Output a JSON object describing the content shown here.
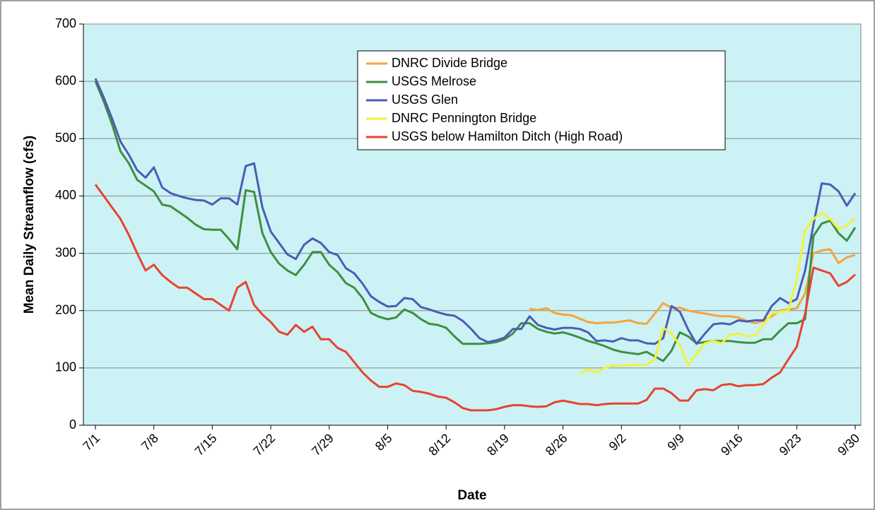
{
  "chart_data": {
    "type": "line",
    "ylabel": "Mean Daily Streamflow (cfs)",
    "xlabel": "Date",
    "categories": [
      "7/1",
      null,
      null,
      null,
      null,
      null,
      null,
      "7/8",
      null,
      null,
      null,
      null,
      null,
      null,
      "7/15",
      null,
      null,
      null,
      null,
      null,
      null,
      "7/22",
      null,
      null,
      null,
      null,
      null,
      null,
      "7/29",
      null,
      null,
      null,
      null,
      null,
      null,
      "8/5",
      null,
      null,
      null,
      null,
      null,
      null,
      "8/12",
      null,
      null,
      null,
      null,
      null,
      null,
      "8/19",
      null,
      null,
      null,
      null,
      null,
      null,
      "8/26",
      null,
      null,
      null,
      null,
      null,
      null,
      "9/2",
      null,
      null,
      null,
      null,
      null,
      null,
      "9/9",
      null,
      null,
      null,
      null,
      null,
      null,
      "9/16",
      null,
      null,
      null,
      null,
      null,
      null,
      "9/23",
      null,
      null,
      null,
      null,
      null,
      null,
      "9/30"
    ],
    "ylim": [
      0,
      700
    ],
    "yticks": [
      0,
      100,
      200,
      300,
      400,
      500,
      600,
      700
    ],
    "grid": true,
    "legend": "top-center",
    "series": [
      {
        "name": "DNRC Divide Bridge",
        "color": "#f5a53c",
        "values": [
          null,
          null,
          null,
          null,
          null,
          null,
          null,
          null,
          null,
          null,
          null,
          null,
          null,
          null,
          null,
          null,
          null,
          null,
          null,
          null,
          null,
          null,
          null,
          null,
          null,
          null,
          null,
          null,
          null,
          null,
          null,
          null,
          null,
          null,
          null,
          null,
          null,
          null,
          null,
          null,
          null,
          null,
          null,
          null,
          null,
          null,
          null,
          null,
          null,
          null,
          null,
          null,
          203,
          201,
          204,
          196,
          193,
          192,
          186,
          180,
          178,
          179,
          179,
          181,
          183,
          178,
          177,
          195,
          213,
          205,
          205,
          200,
          197,
          195,
          192,
          190,
          190,
          188,
          182,
          178,
          182,
          190,
          200,
          202,
          204,
          230,
          300,
          305,
          307,
          283,
          293,
          297
        ]
      },
      {
        "name": "USGS Melrose",
        "color": "#3f8f3f",
        "values": [
          600,
          565,
          525,
          478,
          457,
          428,
          418,
          408,
          385,
          382,
          372,
          362,
          350,
          342,
          341,
          341,
          325,
          307,
          410,
          407,
          335,
          302,
          282,
          270,
          262,
          280,
          302,
          302,
          280,
          267,
          248,
          240,
          222,
          196,
          189,
          185,
          188,
          202,
          196,
          185,
          177,
          175,
          170,
          155,
          142,
          142,
          142,
          143,
          145,
          150,
          160,
          178,
          178,
          168,
          163,
          160,
          162,
          158,
          153,
          147,
          143,
          138,
          132,
          128,
          126,
          124,
          128,
          120,
          112,
          130,
          162,
          155,
          143,
          145,
          147,
          147,
          147,
          145,
          144,
          144,
          150,
          150,
          165,
          178,
          178,
          185,
          330,
          352,
          357,
          335,
          322,
          345
        ]
      },
      {
        "name": "USGS Glen",
        "color": "#4b5db3",
        "values": [
          605,
          572,
          535,
          495,
          472,
          445,
          432,
          450,
          415,
          405,
          400,
          396,
          393,
          392,
          385,
          396,
          396,
          385,
          452,
          457,
          380,
          338,
          318,
          298,
          290,
          315,
          326,
          318,
          302,
          297,
          274,
          265,
          247,
          225,
          215,
          207,
          208,
          222,
          220,
          206,
          202,
          197,
          193,
          191,
          182,
          168,
          152,
          145,
          148,
          153,
          168,
          168,
          190,
          175,
          170,
          167,
          170,
          170,
          168,
          162,
          147,
          148,
          146,
          152,
          148,
          148,
          143,
          142,
          152,
          208,
          198,
          167,
          142,
          160,
          176,
          178,
          176,
          183,
          181,
          183,
          183,
          208,
          222,
          213,
          220,
          270,
          350,
          422,
          420,
          408,
          383,
          405
        ]
      },
      {
        "name": "DNRC Pennington Bridge",
        "color": "#f2f23a",
        "values": [
          null,
          null,
          null,
          null,
          null,
          null,
          null,
          null,
          null,
          null,
          null,
          null,
          null,
          null,
          null,
          null,
          null,
          null,
          null,
          null,
          null,
          null,
          null,
          null,
          null,
          null,
          null,
          null,
          null,
          null,
          null,
          null,
          null,
          null,
          null,
          null,
          null,
          null,
          null,
          null,
          null,
          null,
          null,
          null,
          null,
          null,
          null,
          null,
          null,
          null,
          null,
          null,
          null,
          null,
          null,
          null,
          null,
          null,
          88,
          98,
          92,
          100,
          104,
          104,
          105,
          105,
          105,
          115,
          170,
          160,
          140,
          105,
          125,
          143,
          147,
          143,
          158,
          160,
          155,
          157,
          175,
          195,
          198,
          200,
          255,
          340,
          360,
          370,
          360,
          342,
          348,
          362
        ]
      },
      {
        "name": "USGS below Hamilton Ditch (High Road)",
        "color": "#e8432f",
        "values": [
          420,
          400,
          380,
          360,
          332,
          300,
          270,
          280,
          262,
          250,
          240,
          240,
          230,
          220,
          220,
          210,
          200,
          240,
          250,
          210,
          193,
          180,
          163,
          158,
          175,
          163,
          172,
          150,
          150,
          135,
          128,
          110,
          92,
          78,
          67,
          67,
          73,
          70,
          60,
          58,
          55,
          50,
          48,
          40,
          30,
          26,
          26,
          26,
          28,
          32,
          35,
          35,
          33,
          32,
          33,
          40,
          43,
          40,
          37,
          37,
          35,
          37,
          38,
          38,
          38,
          38,
          44,
          64,
          64,
          56,
          43,
          43,
          61,
          63,
          61,
          70,
          72,
          68,
          70,
          70,
          72,
          83,
          92,
          115,
          137,
          195,
          275,
          270,
          265,
          243,
          250,
          263
        ]
      }
    ]
  }
}
